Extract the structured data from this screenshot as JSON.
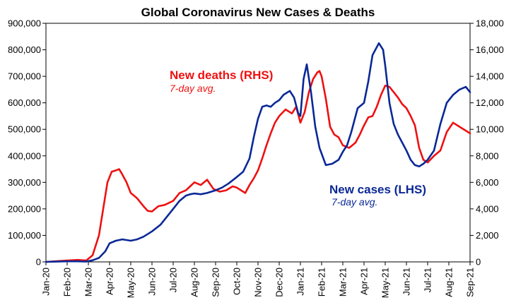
{
  "chart_data": {
    "type": "line",
    "title": "Global Coronavirus New Cases & Deaths",
    "left_axis": {
      "ylim": [
        0,
        900000
      ],
      "ticks": [
        0,
        100000,
        200000,
        300000,
        400000,
        500000,
        600000,
        700000,
        800000,
        900000
      ],
      "tick_labels": [
        "0",
        "100,000",
        "200,000",
        "300,000",
        "400,000",
        "500,000",
        "600,000",
        "700,000",
        "800,000",
        "900,000"
      ]
    },
    "right_axis": {
      "ylim": [
        0,
        18000
      ],
      "ticks": [
        0,
        2000,
        4000,
        6000,
        8000,
        10000,
        12000,
        14000,
        16000,
        18000
      ],
      "tick_labels": [
        "0",
        "2,000",
        "4,000",
        "6,000",
        "8,000",
        "10,000",
        "12,000",
        "14,000",
        "16,000",
        "18,000"
      ]
    },
    "x_axis": {
      "categories": [
        "Jan-20",
        "Feb-20",
        "Mar-20",
        "Apr-20",
        "May-20",
        "Jun-20",
        "Jul-20",
        "Aug-20",
        "Sep-20",
        "Oct-20",
        "Nov-20",
        "Dec-20",
        "Jan-21",
        "Feb-21",
        "Mar-21",
        "Apr-21",
        "May-21",
        "Jun-21",
        "Jul-21",
        "Aug-21",
        "Sep-21"
      ]
    },
    "grid": false,
    "series": [
      {
        "name": "New cases (LHS)",
        "subtitle": "7-day avg.",
        "axis": "left",
        "color": "#0a2896",
        "x": [
          0,
          0.5,
          1,
          1.5,
          1.9,
          2.2,
          2.5,
          2.8,
          3,
          3.3,
          3.6,
          4,
          4.3,
          4.6,
          5,
          5.4,
          5.7,
          6,
          6.3,
          6.6,
          6.8,
          7,
          7.3,
          7.6,
          8,
          8.3,
          8.6,
          9,
          9.3,
          9.6,
          9.8,
          10,
          10.2,
          10.4,
          10.6,
          10.8,
          11,
          11.2,
          11.5,
          11.7,
          11.9,
          12,
          12.15,
          12.3,
          12.5,
          12.7,
          12.9,
          13.2,
          13.5,
          13.8,
          14,
          14.2,
          14.4,
          14.7,
          15,
          15.2,
          15.4,
          15.7,
          15.9,
          16,
          16.2,
          16.4,
          16.6,
          16.8,
          17,
          17.2,
          17.4,
          17.6,
          17.8,
          18,
          18.3,
          18.6,
          18.9,
          19.2,
          19.5,
          19.8,
          20
        ],
        "values": [
          0,
          1000,
          2000,
          2000,
          1000,
          6000,
          15000,
          40000,
          70000,
          80000,
          85000,
          80000,
          85000,
          95000,
          115000,
          140000,
          170000,
          200000,
          230000,
          250000,
          255000,
          258000,
          255000,
          260000,
          270000,
          280000,
          295000,
          320000,
          340000,
          390000,
          470000,
          540000,
          585000,
          590000,
          585000,
          600000,
          610000,
          630000,
          645000,
          620000,
          560000,
          550000,
          690000,
          745000,
          640000,
          510000,
          430000,
          365000,
          370000,
          385000,
          415000,
          440000,
          490000,
          580000,
          600000,
          680000,
          780000,
          825000,
          800000,
          740000,
          600000,
          520000,
          480000,
          450000,
          420000,
          385000,
          365000,
          360000,
          370000,
          385000,
          420000,
          520000,
          600000,
          630000,
          650000,
          660000,
          640000
        ]
      },
      {
        "name": "New deaths (RHS)",
        "subtitle": "7-day avg.",
        "axis": "right",
        "color": "#ee1111",
        "x": [
          0,
          0.5,
          1,
          1.5,
          1.9,
          2.2,
          2.5,
          2.7,
          2.9,
          3.1,
          3.3,
          3.45,
          3.6,
          3.8,
          4,
          4.3,
          4.6,
          4.8,
          5,
          5.3,
          5.6,
          6,
          6.3,
          6.6,
          6.8,
          7,
          7.3,
          7.6,
          7.9,
          8.2,
          8.5,
          8.8,
          9,
          9.2,
          9.4,
          9.6,
          9.8,
          10,
          10.2,
          10.4,
          10.6,
          10.8,
          11,
          11.3,
          11.6,
          11.8,
          12,
          12.2,
          12.4,
          12.6,
          12.8,
          12.9,
          13,
          13.2,
          13.4,
          13.6,
          13.8,
          14,
          14.3,
          14.6,
          14.8,
          15,
          15.2,
          15.4,
          15.6,
          15.8,
          16,
          16.2,
          16.4,
          16.6,
          16.8,
          17,
          17.2,
          17.4,
          17.6,
          17.8,
          18,
          18.3,
          18.6,
          18.9,
          19.2,
          19.5,
          19.8,
          20
        ],
        "values": [
          0,
          50,
          100,
          150,
          100,
          500,
          2000,
          4000,
          6000,
          6800,
          6900,
          7000,
          6600,
          6000,
          5200,
          4800,
          4200,
          3850,
          3800,
          4200,
          4300,
          4600,
          5200,
          5400,
          5700,
          6000,
          5800,
          6200,
          5500,
          5300,
          5400,
          5700,
          5600,
          5400,
          5200,
          5800,
          6300,
          6900,
          7800,
          8800,
          9700,
          10500,
          11000,
          11500,
          11200,
          11700,
          10500,
          11300,
          12800,
          13800,
          14300,
          14400,
          14000,
          12300,
          10200,
          9600,
          9400,
          8800,
          8600,
          9000,
          9600,
          10300,
          10900,
          11000,
          11700,
          12600,
          13300,
          13200,
          12800,
          12400,
          11900,
          11600,
          11000,
          10300,
          8600,
          7700,
          7500,
          8000,
          8400,
          9800,
          10500,
          10200,
          9900,
          9700
        ]
      }
    ]
  }
}
